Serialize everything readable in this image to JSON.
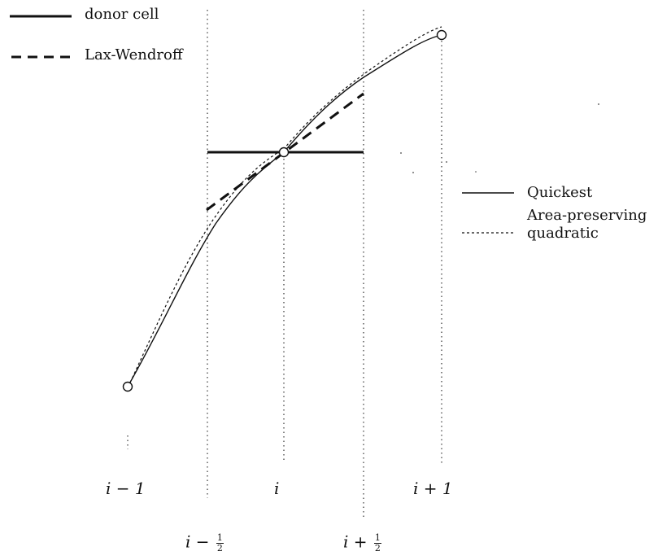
{
  "legend_left": {
    "donor_cell": "donor cell",
    "lax_wendroff": "Lax-Wendroff"
  },
  "legend_right": {
    "quickest": "Quickest",
    "area_preserving_line1": "Area-preserving",
    "area_preserving_line2": "quadratic"
  },
  "axis_labels": {
    "i_minus_1": "i − 1",
    "i": "i",
    "i_plus_1": "i + 1",
    "i_minus_half_base": "i −",
    "i_plus_half_base": "i +",
    "half_num": "1",
    "half_den": "2"
  },
  "colors": {
    "ink": "#111111"
  }
}
